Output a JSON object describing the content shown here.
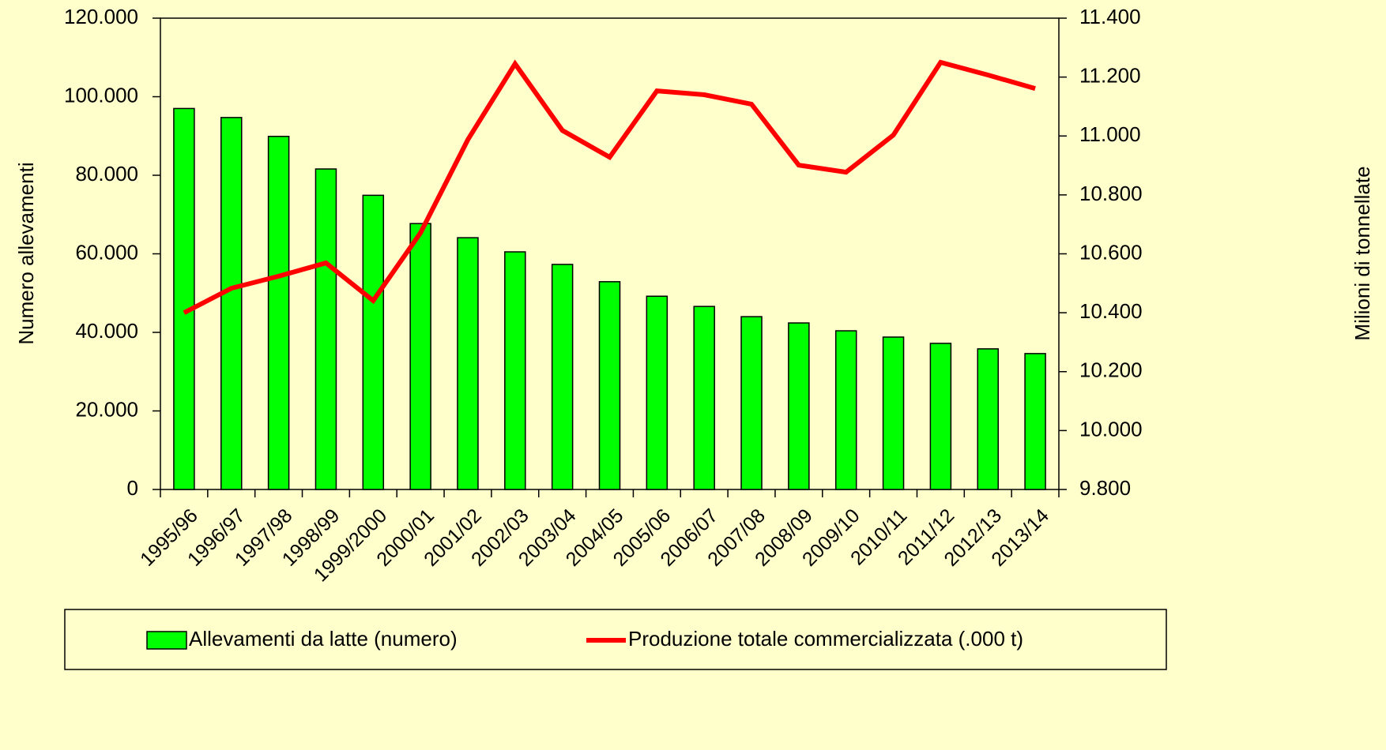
{
  "chart_data": {
    "type": "bar_line",
    "categories": [
      "1995/96",
      "1996/97",
      "1997/98",
      "1998/99",
      "1999/2000",
      "2000/01",
      "2001/02",
      "2002/03",
      "2003/04",
      "2004/05",
      "2005/06",
      "2006/07",
      "2007/08",
      "2008/09",
      "2009/10",
      "2010/11",
      "2011/12",
      "2012/13",
      "2013/14"
    ],
    "series": [
      {
        "name": "Allevamenti da latte (numero)",
        "type": "bar",
        "color": "#00ff00",
        "axis": "y",
        "values": [
          97000,
          94700,
          89900,
          81600,
          74900,
          67700,
          64100,
          60500,
          57300,
          52900,
          49200,
          46600,
          44000,
          42400,
          40400,
          38800,
          37200,
          35800,
          34600
        ]
      },
      {
        "name": "Produzione totale commercializzata (.000 t)",
        "type": "line",
        "color": "#ff0000",
        "axis": "y2",
        "values": [
          10400,
          10483,
          10524,
          10569,
          10441,
          10671,
          10987,
          11245,
          11019,
          10928,
          11153,
          11140,
          11108,
          10901,
          10877,
          11003,
          11250,
          11207,
          11161
        ]
      }
    ],
    "ylabel": "Numero allevamenti",
    "y2label": "Milioni di tonnellate",
    "ylim": [
      0,
      120000
    ],
    "yticks": [
      0,
      {
        "value": 20000,
        "label": "20.000"
      },
      {
        "value": 40000,
        "label": "40.000"
      },
      {
        "value": 60000,
        "label": "60.000"
      },
      {
        "value": 80000,
        "label": "80.000"
      },
      {
        "value": 100000,
        "label": "100.000"
      },
      {
        "value": 120000,
        "label": "120.000"
      }
    ],
    "y2lim": [
      9800,
      11400
    ],
    "y2ticks": [
      {
        "value": 9800,
        "label": "9.800"
      },
      {
        "value": 10000,
        "label": "10.000"
      },
      {
        "value": 10200,
        "label": "10.200"
      },
      {
        "value": 10400,
        "label": "10.400"
      },
      {
        "value": 10600,
        "label": "10.600"
      },
      {
        "value": 10800,
        "label": "10.800"
      },
      {
        "value": 11000,
        "label": "11.000"
      },
      {
        "value": 11200,
        "label": "11.200"
      },
      {
        "value": 11400,
        "label": "11.400"
      }
    ],
    "grid": false,
    "legend": "bottom"
  }
}
